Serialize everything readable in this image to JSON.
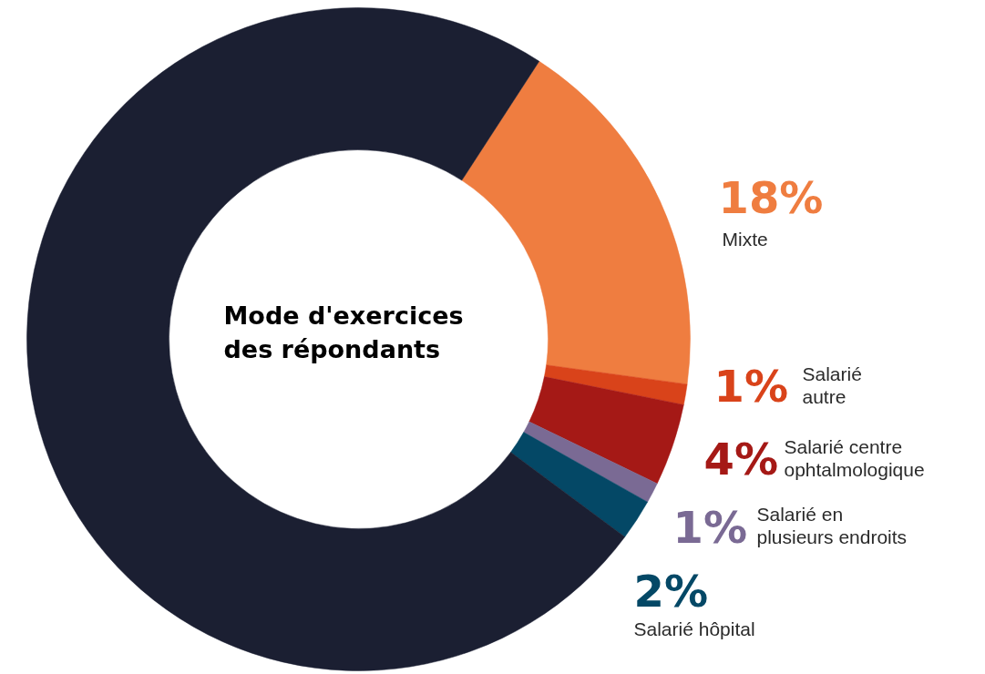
{
  "chart_data": {
    "type": "donut",
    "title": "Mode d'exercices des répondants",
    "categories": [
      "Mixte",
      "Salarié autre",
      "Salarié centre ophtalmologique",
      "Salarié en plusieurs endroits",
      "Salarié hôpital",
      null
    ],
    "values": [
      18,
      1,
      4,
      1,
      2,
      74
    ],
    "colors": [
      "#ef7d40",
      "#d9431a",
      "#a51916",
      "#7a6a94",
      "#044866",
      "#1b1f32"
    ],
    "value_labels": [
      "18%",
      "1%",
      "4%",
      "1%",
      "2%",
      null
    ]
  }
}
